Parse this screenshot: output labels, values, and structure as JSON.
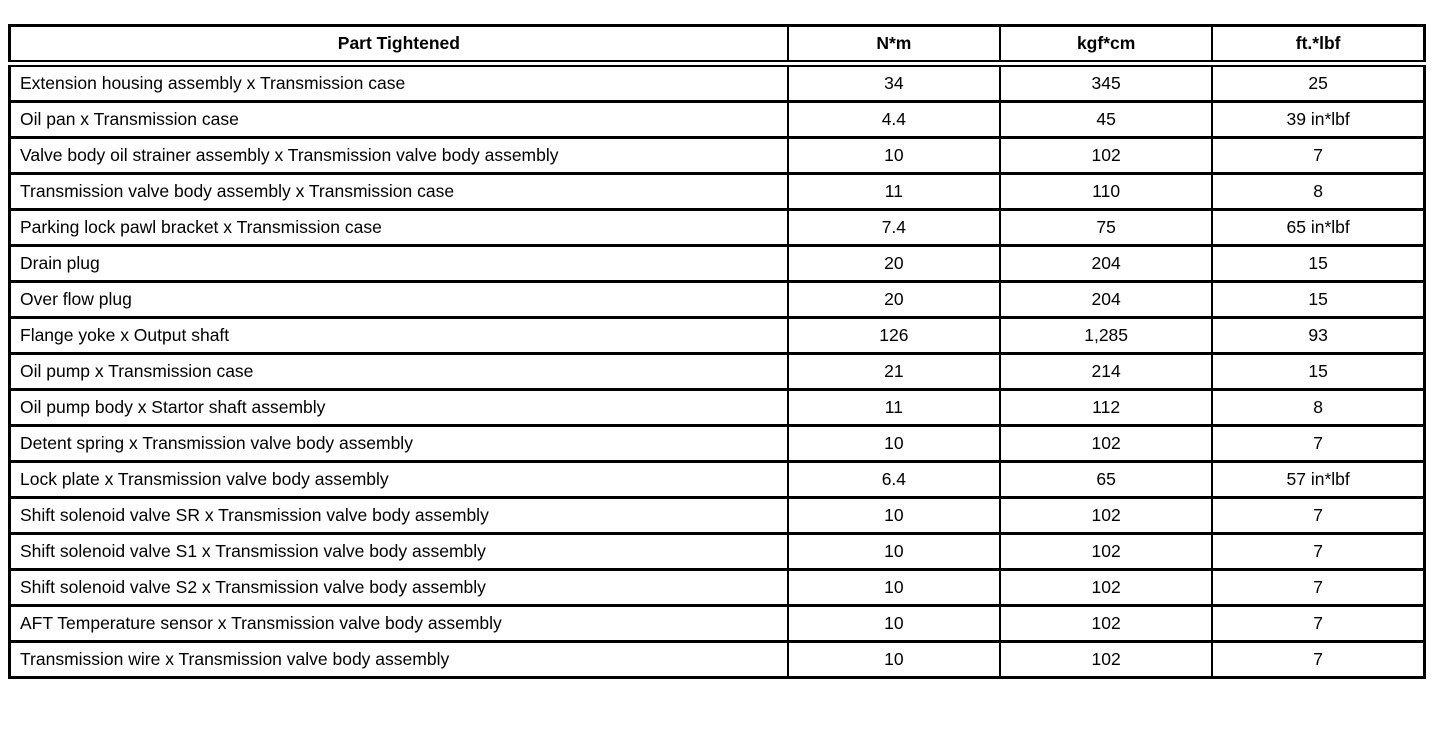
{
  "colors": {
    "background": "#ffffff",
    "border": "#000000",
    "text": "#000000"
  },
  "table": {
    "columns": [
      {
        "key": "part",
        "label": "Part Tightened"
      },
      {
        "key": "nm",
        "label": "N*m"
      },
      {
        "key": "kgfcm",
        "label": "kgf*cm"
      },
      {
        "key": "ftlbf",
        "label": "ft.*lbf"
      }
    ],
    "rows": [
      {
        "part": "Extension housing assembly x Transmission case",
        "nm": "34",
        "kgfcm": "345",
        "ftlbf": "25"
      },
      {
        "part": "Oil pan x Transmission case",
        "nm": "4.4",
        "kgfcm": "45",
        "ftlbf": "39 in*lbf"
      },
      {
        "part": "Valve body oil strainer assembly x Transmission valve body assembly",
        "nm": "10",
        "kgfcm": "102",
        "ftlbf": "7"
      },
      {
        "part": "Transmission valve body assembly x Transmission case",
        "nm": "11",
        "kgfcm": "110",
        "ftlbf": "8"
      },
      {
        "part": "Parking lock pawl bracket x Transmission case",
        "nm": "7.4",
        "kgfcm": "75",
        "ftlbf": "65 in*lbf"
      },
      {
        "part": "Drain plug",
        "nm": "20",
        "kgfcm": "204",
        "ftlbf": "15"
      },
      {
        "part": "Over flow plug",
        "nm": "20",
        "kgfcm": "204",
        "ftlbf": "15"
      },
      {
        "part": "Flange yoke x Output shaft",
        "nm": "126",
        "kgfcm": "1,285",
        "ftlbf": "93"
      },
      {
        "part": "Oil pump x Transmission case",
        "nm": "21",
        "kgfcm": "214",
        "ftlbf": "15"
      },
      {
        "part": "Oil pump body x Startor shaft assembly",
        "nm": "11",
        "kgfcm": "112",
        "ftlbf": "8"
      },
      {
        "part": "Detent spring x Transmission valve body assembly",
        "nm": "10",
        "kgfcm": "102",
        "ftlbf": "7"
      },
      {
        "part": "Lock plate x Transmission valve body assembly",
        "nm": "6.4",
        "kgfcm": "65",
        "ftlbf": "57 in*lbf"
      },
      {
        "part": "Shift solenoid valve SR x Transmission valve body assembly",
        "nm": "10",
        "kgfcm": "102",
        "ftlbf": "7"
      },
      {
        "part": "Shift solenoid valve S1 x Transmission valve body assembly",
        "nm": "10",
        "kgfcm": "102",
        "ftlbf": "7"
      },
      {
        "part": "Shift solenoid valve S2 x Transmission valve body assembly",
        "nm": "10",
        "kgfcm": "102",
        "ftlbf": "7"
      },
      {
        "part": "AFT Temperature sensor x Transmission valve body assembly",
        "nm": "10",
        "kgfcm": "102",
        "ftlbf": "7"
      },
      {
        "part": "Transmission wire x Transmission valve body assembly",
        "nm": "10",
        "kgfcm": "102",
        "ftlbf": "7"
      }
    ]
  }
}
